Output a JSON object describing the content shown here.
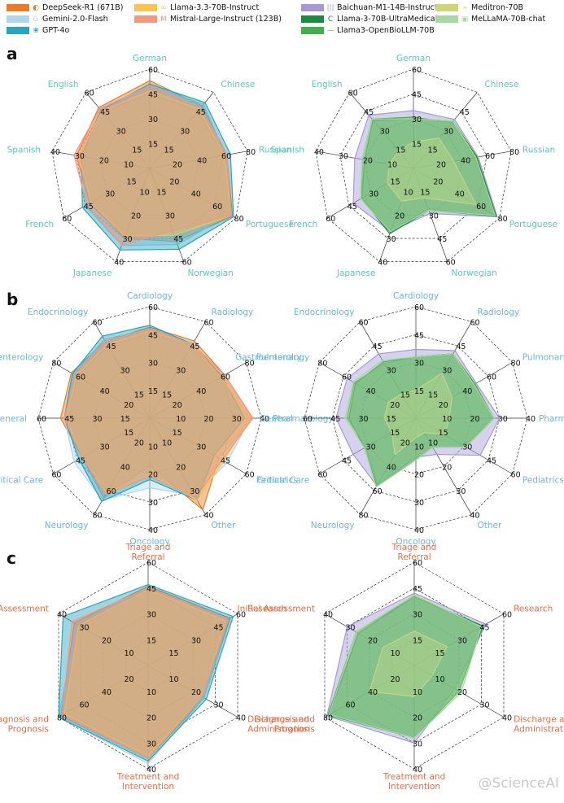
{
  "legend": [
    {
      "label": "DeepSeek-R1 (671B)",
      "color": "#ea7d23",
      "icon": "deepseek-whale-icon"
    },
    {
      "label": "Gemini-2.0-Flash",
      "color": "#aed6ec",
      "icon": "google-g-icon"
    },
    {
      "label": "GPT-4o",
      "color": "#2aa5bf",
      "icon": "openai-knot-icon"
    },
    {
      "label": "Llama-3.3-70B-Instruct",
      "color": "#f6c64f",
      "icon": "meta-infinity-icon"
    },
    {
      "label": "Mistral-Large-Instruct (123B)",
      "color": "#ef9a7f",
      "icon": "mistral-m-icon"
    },
    {
      "label": "Baichuan-M1-14B-Instruct",
      "color": "#a59ad4",
      "icon": "baichuan-bars-icon"
    },
    {
      "label": "Llama-3-70B-UltraMedical",
      "color": "#1d8b3f",
      "icon": "ultramedical-c-icon"
    },
    {
      "label": "Llama3-OpenBioLLM-70B",
      "color": "#45ad4b",
      "icon": "openbio-line-icon"
    },
    {
      "label": "Meditron-70B",
      "color": "#cfd675",
      "icon": "meditron-arrows-icon"
    },
    {
      "label": "MeLLaMA-70B-chat",
      "color": "#a8d8a2",
      "icon": "mellama-icon"
    }
  ],
  "panels": [
    {
      "letter": "a",
      "category_color": "#62c6b8"
    },
    {
      "letter": "b",
      "category_color": "#6db7d6"
    },
    {
      "letter": "c",
      "category_color": "#e36f4a"
    }
  ],
  "watermark": "@ScienceAI",
  "chart_data": [
    {
      "type": "radar",
      "panel": "a",
      "categories": [
        "German",
        "Chinese",
        "Russian",
        "Portuguese",
        "Norwegian",
        "Japanese",
        "French",
        "Spanish",
        "English"
      ],
      "ticks": [
        [
          "15",
          "30",
          "45",
          "60"
        ],
        [
          "15",
          "30",
          "45"
        ],
        [
          "20",
          "40",
          "60",
          "80"
        ],
        [
          "20",
          "40",
          "60",
          "80"
        ],
        [
          "15",
          "30",
          "45",
          "60"
        ],
        [
          "10",
          "20",
          "30",
          "40"
        ],
        [
          "15",
          "30",
          "45",
          "60"
        ],
        [
          "10",
          "20",
          "30",
          "40"
        ],
        [
          "15",
          "30",
          "45",
          "60"
        ]
      ],
      "ranges": [
        60,
        45,
        80,
        80,
        60,
        40,
        60,
        40,
        60
      ],
      "series": [
        {
          "name": "DeepSeek-R1 (671B)",
          "values": [
            53,
            37,
            63,
            77,
            47,
            30,
            42,
            30,
            48
          ]
        },
        {
          "name": "Gemini-2.0-Flash",
          "values": [
            50,
            38,
            62,
            74,
            49,
            33,
            45,
            27,
            47
          ]
        },
        {
          "name": "GPT-4o",
          "values": [
            51,
            39,
            66,
            78,
            52,
            35,
            47,
            28,
            46
          ]
        },
        {
          "name": "Llama-3.3-70B-Instruct",
          "values": [
            47,
            35,
            61,
            76,
            43,
            29,
            41,
            29,
            45
          ]
        },
        {
          "name": "Mistral-Large-Instruct (123B)",
          "values": [
            50,
            36,
            63,
            76,
            40,
            33,
            44,
            31,
            47
          ]
        }
      ]
    },
    {
      "type": "radar",
      "panel": "a",
      "categories": [
        "German",
        "Chinese",
        "Russian",
        "Portuguese",
        "Norwegian",
        "Japanese",
        "French",
        "Spanish",
        "English"
      ],
      "ticks": [
        [
          "15",
          "30",
          "45",
          "60"
        ],
        [
          "15",
          "30",
          "45"
        ],
        [
          "20",
          "40",
          "60",
          "80"
        ],
        [
          "20",
          "40",
          "60",
          "80"
        ],
        [
          "15",
          "30",
          "45",
          "60"
        ],
        [
          "10",
          "20",
          "30",
          "40"
        ],
        [
          "15",
          "30",
          "45",
          "60"
        ],
        [
          "10",
          "20",
          "30",
          "40"
        ],
        [
          "15",
          "30",
          "45",
          "60"
        ]
      ],
      "ranges": [
        60,
        45,
        80,
        80,
        60,
        40,
        60,
        40,
        60
      ],
      "series": [
        {
          "name": "Baichuan-M1-14B-Instruct",
          "values": [
            35,
            29,
            53,
            78,
            29,
            27,
            42,
            24,
            42
          ]
        },
        {
          "name": "Llama-3-70B-UltraMedical",
          "values": [
            30,
            28,
            52,
            77,
            27,
            28,
            36,
            20,
            38
          ]
        },
        {
          "name": "Llama3-OpenBioLLM-70B",
          "values": [
            31,
            27,
            50,
            76,
            26,
            27,
            36,
            21,
            39
          ]
        },
        {
          "name": "Meditron-70B",
          "values": [
            16,
            18,
            33,
            58,
            19,
            14,
            18,
            10,
            14
          ]
        },
        {
          "name": "MeLLaMA-70B-chat",
          "values": [
            30,
            28,
            51,
            76,
            27,
            27,
            37,
            21,
            39
          ]
        }
      ]
    },
    {
      "type": "radar",
      "panel": "b",
      "categories": [
        "Cardiology",
        "Radiology",
        "Pulmonary",
        "Pharmacology",
        "Pediatrics",
        "Other",
        "Oncology",
        "Neurology",
        "Critical Care",
        "General",
        "Gastroenterology",
        "Endocrinology"
      ],
      "ticks": [
        [
          "15",
          "30",
          "45",
          "60"
        ],
        [
          "15",
          "30",
          "45",
          "60"
        ],
        [
          "20",
          "40",
          "60",
          "80"
        ],
        [
          "10",
          "20",
          "30",
          "40"
        ],
        [
          "15",
          "30",
          "45",
          "60"
        ],
        [
          "10",
          "20",
          "30",
          "40"
        ],
        [
          "10",
          "20",
          "30",
          "40"
        ],
        [
          "20",
          "40",
          "60",
          "80"
        ],
        [
          "15",
          "30",
          "45",
          "60"
        ],
        [
          "15",
          "30",
          "45",
          "60"
        ],
        [
          "20",
          "40",
          "60",
          "80"
        ],
        [
          "15",
          "30",
          "45",
          "60"
        ]
      ],
      "ranges": [
        60,
        60,
        80,
        40,
        60,
        40,
        40,
        80,
        60,
        60,
        80,
        60
      ],
      "series": [
        {
          "name": "DeepSeek-R1 (671B)",
          "values": [
            49,
            48,
            62,
            37,
            43,
            38,
            17,
            66,
            42,
            48,
            65,
            48
          ]
        },
        {
          "name": "Gemini-2.0-Flash",
          "values": [
            48,
            47,
            59,
            36,
            48,
            32,
            25,
            68,
            47,
            46,
            63,
            49
          ]
        },
        {
          "name": "GPT-4o",
          "values": [
            50,
            46,
            60,
            34,
            40,
            34,
            22,
            69,
            44,
            46,
            64,
            51
          ]
        },
        {
          "name": "Llama-3.3-70B-Instruct",
          "values": [
            47,
            46,
            59,
            36,
            46,
            34,
            20,
            62,
            42,
            45,
            61,
            46
          ]
        },
        {
          "name": "Mistral-Large-Instruct (123B)",
          "values": [
            48,
            46,
            62,
            37,
            45,
            33,
            21,
            63,
            42,
            46,
            62,
            48
          ]
        }
      ]
    },
    {
      "type": "radar",
      "panel": "b",
      "categories": [
        "Cardiology",
        "Radiology",
        "Pulmonary",
        "Pharmacology",
        "Pediatrics",
        "Other",
        "Oncology",
        "Neurology",
        "Critical Care",
        "General",
        "Gastroenterology",
        "Endocrinology"
      ],
      "ticks": [
        [
          "15",
          "30",
          "45",
          "60"
        ],
        [
          "15",
          "30",
          "45",
          "60"
        ],
        [
          "20",
          "40",
          "60",
          "80"
        ],
        [
          "10",
          "20",
          "30",
          "40"
        ],
        [
          "15",
          "30",
          "45",
          "60"
        ],
        [
          "10",
          "20",
          "30",
          "40"
        ],
        [
          "10",
          "20",
          "30",
          "40"
        ],
        [
          "20",
          "40",
          "60",
          "80"
        ],
        [
          "15",
          "30",
          "45",
          "60"
        ],
        [
          "15",
          "30",
          "45",
          "60"
        ],
        [
          "20",
          "40",
          "60",
          "80"
        ],
        [
          "15",
          "30",
          "45",
          "60"
        ]
      ],
      "ranges": [
        60,
        60,
        80,
        40,
        60,
        40,
        40,
        80,
        60,
        60,
        80,
        60
      ],
      "series": [
        {
          "name": "Baichuan-M1-14B-Instruct",
          "values": [
            37,
            42,
            50,
            30,
            40,
            15,
            14,
            56,
            39,
            43,
            57,
            40
          ]
        },
        {
          "name": "Llama-3-70B-UltraMedical",
          "values": [
            33,
            40,
            48,
            28,
            31,
            12,
            15,
            56,
            32,
            36,
            50,
            35
          ]
        },
        {
          "name": "Llama3-OpenBioLLM-70B",
          "values": [
            33,
            40,
            49,
            28,
            30,
            12,
            15,
            55,
            31,
            37,
            51,
            34
          ]
        },
        {
          "name": "Meditron-70B",
          "values": [
            15,
            28,
            30,
            12,
            18,
            6,
            7,
            30,
            15,
            17,
            23,
            15
          ]
        },
        {
          "name": "MeLLaMA-70B-chat",
          "values": [
            33,
            40,
            48,
            28,
            31,
            12,
            15,
            57,
            32,
            38,
            52,
            36
          ]
        }
      ]
    },
    {
      "type": "radar",
      "panel": "c",
      "categories": [
        "Triage and Referral",
        "Research",
        "Discharge and Administration",
        "Treatment and Intervention",
        "Diagnosis and Prognosis",
        "Initial Assessment"
      ],
      "ticks": [
        [
          "15",
          "30",
          "45",
          "60"
        ],
        [
          "15",
          "30",
          "45",
          "60"
        ],
        [
          "10",
          "20",
          "30",
          "40"
        ],
        [
          "10",
          "20",
          "30",
          "40"
        ],
        [
          "20",
          "40",
          "60",
          "80"
        ],
        [
          "10",
          "20",
          "30",
          "40"
        ]
      ],
      "ranges": [
        60,
        60,
        40,
        40,
        80,
        40
      ],
      "series": [
        {
          "name": "DeepSeek-R1 (671B)",
          "values": [
            46,
            55,
            25,
            36,
            78,
            33
          ]
        },
        {
          "name": "Gemini-2.0-Flash",
          "values": [
            45,
            54,
            25,
            38,
            80,
            32
          ]
        },
        {
          "name": "GPT-4o",
          "values": [
            47,
            57,
            26,
            37,
            80,
            38
          ]
        },
        {
          "name": "Llama-3.3-70B-Instruct",
          "values": [
            44,
            52,
            24,
            35,
            75,
            31
          ]
        },
        {
          "name": "Mistral-Large-Instruct (123B)",
          "values": [
            45,
            53,
            24,
            36,
            77,
            34
          ]
        }
      ]
    },
    {
      "type": "radar",
      "panel": "c",
      "categories": [
        "Triage and Referral",
        "Research",
        "Discharge and Administration",
        "Treatment and Intervention",
        "Diagnosis and Prognosis",
        "Initial Assessment"
      ],
      "ticks": [
        [
          "15",
          "30",
          "45",
          "60"
        ],
        [
          "15",
          "30",
          "45",
          "60"
        ],
        [
          "10",
          "20",
          "30",
          "40"
        ],
        [
          "10",
          "20",
          "30",
          "40"
        ],
        [
          "20",
          "40",
          "60",
          "80"
        ],
        [
          "10",
          "20",
          "30",
          "40"
        ]
      ],
      "ranges": [
        60,
        60,
        40,
        40,
        80,
        40
      ],
      "series": [
        {
          "name": "Baichuan-M1-14B-Instruct",
          "values": [
            42,
            48,
            18,
            30,
            78,
            30
          ]
        },
        {
          "name": "Llama-3-70B-UltraMedical",
          "values": [
            40,
            46,
            20,
            28,
            76,
            25
          ]
        },
        {
          "name": "Llama3-OpenBioLLM-70B",
          "values": [
            40,
            45,
            20,
            28,
            77,
            26
          ]
        },
        {
          "name": "Meditron-70B",
          "values": [
            20,
            22,
            8,
            12,
            40,
            14
          ]
        },
        {
          "name": "MeLLaMA-70B-chat",
          "values": [
            41,
            45,
            21,
            28,
            76,
            26
          ]
        }
      ]
    }
  ]
}
